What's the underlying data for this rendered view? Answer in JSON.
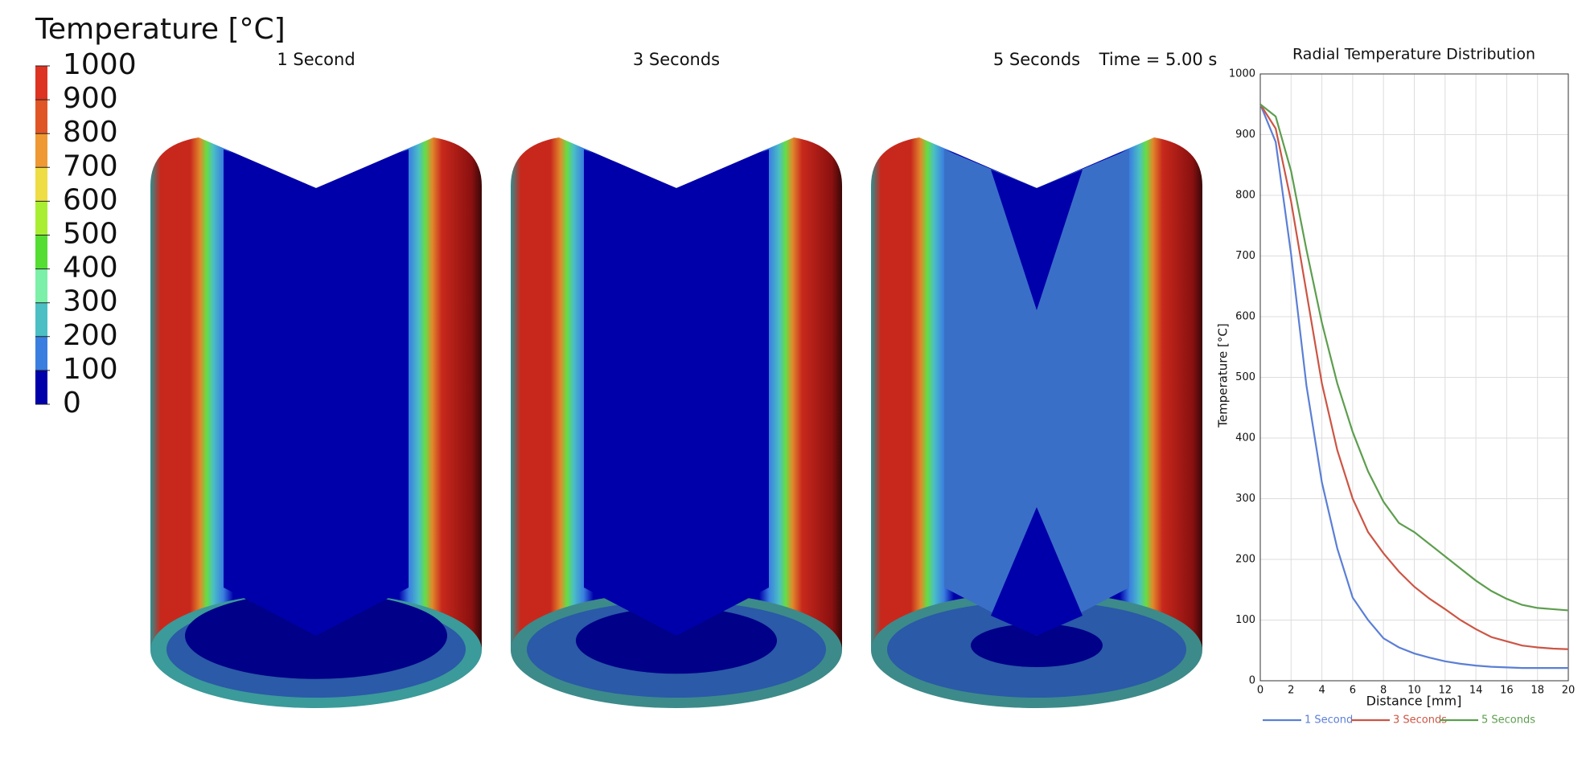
{
  "colorbar": {
    "title": "Temperature [°C]",
    "ticks": [
      0,
      100,
      200,
      300,
      400,
      500,
      600,
      700,
      800,
      900,
      1000
    ],
    "colors": [
      "#0000aa",
      "#3a7fe0",
      "#4bbfc4",
      "#7cf0a8",
      "#55dd33",
      "#aaee33",
      "#eedd44",
      "#ee9933",
      "#e05526",
      "#dd3322"
    ]
  },
  "panels": [
    {
      "label": "1 Second"
    },
    {
      "label": "3 Seconds"
    },
    {
      "label": "5 Seconds"
    }
  ],
  "time_label": "Time = 5.00  s",
  "chart_data": {
    "type": "line",
    "title": "Radial Temperature Distribution",
    "x_label": "Distance [mm]",
    "y_label": "Temperature [°C]",
    "x": [
      0,
      1,
      2,
      3,
      4,
      5,
      6,
      7,
      8,
      9,
      10,
      11,
      12,
      13,
      14,
      15,
      16,
      17,
      18,
      19,
      20
    ],
    "series": [
      {
        "name": "1 Second",
        "color": "#5b7fd6",
        "values": [
          950,
          888,
          703,
          486,
          327,
          218,
          137,
          100,
          70,
          55,
          45,
          38,
          32,
          28,
          25,
          23,
          22,
          21,
          21,
          21,
          21
        ]
      },
      {
        "name": "3 Seconds",
        "color": "#cc5544",
        "values": [
          950,
          910,
          790,
          640,
          490,
          380,
          300,
          245,
          210,
          180,
          155,
          135,
          118,
          100,
          85,
          72,
          65,
          58,
          55,
          53,
          52
        ]
      },
      {
        "name": "5 Seconds",
        "color": "#5d9e4e",
        "values": [
          950,
          930,
          840,
          710,
          590,
          490,
          410,
          345,
          295,
          260,
          245,
          225,
          205,
          185,
          165,
          148,
          135,
          125,
          120,
          118,
          116
        ]
      }
    ],
    "xlim": [
      0,
      20
    ],
    "ylim": [
      0,
      1000
    ],
    "xticks": [
      0,
      2,
      4,
      6,
      8,
      10,
      12,
      14,
      16,
      18,
      20
    ],
    "yticks": [
      0,
      100,
      200,
      300,
      400,
      500,
      600,
      700,
      800,
      900,
      1000
    ],
    "grid": true,
    "legend": "bottom"
  }
}
